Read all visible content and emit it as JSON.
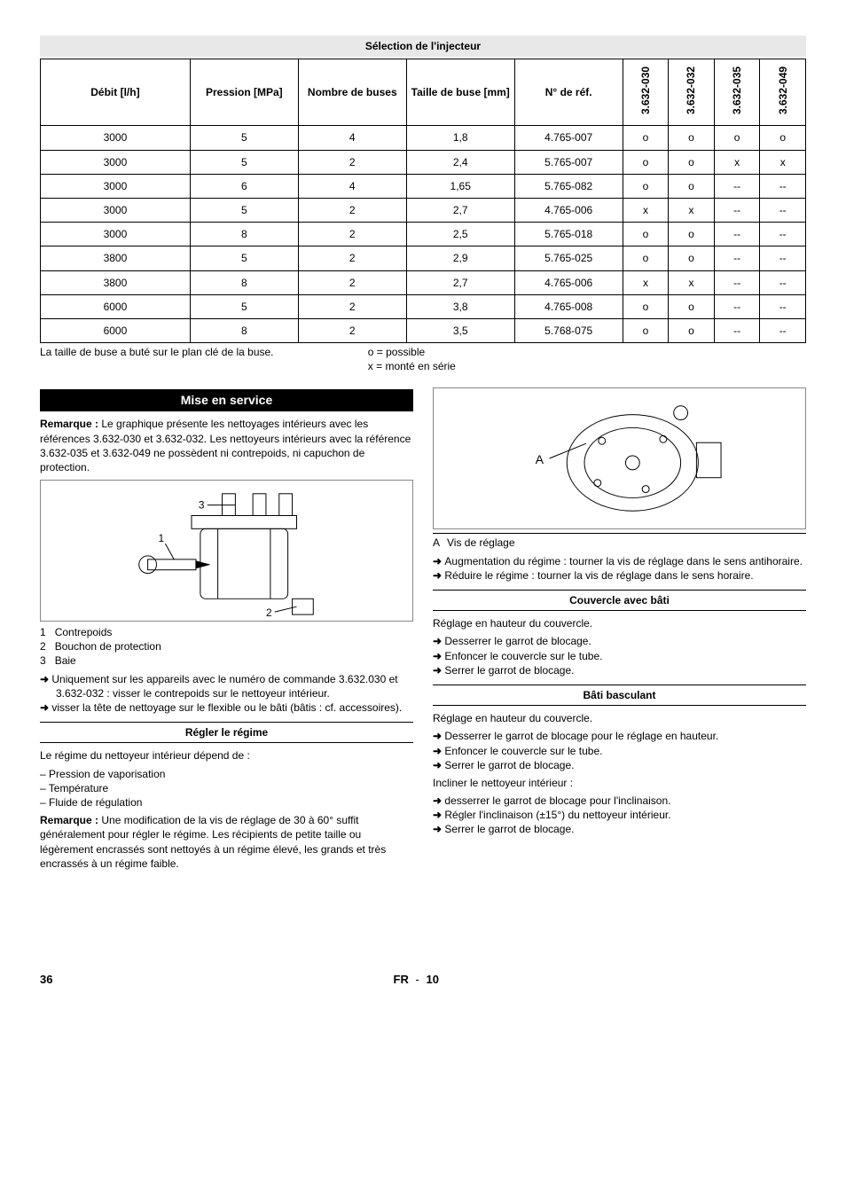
{
  "table": {
    "title": "Sélection de l'injecteur",
    "headers": [
      "Débit [l/h]",
      "Pression [MPa]",
      "Nombre de buses",
      "Taille de buse [mm]",
      "N° de réf."
    ],
    "vheaders": [
      "3.632-030",
      "3.632-032",
      "3.632-035",
      "3.632-049"
    ],
    "col_widths": [
      "18%",
      "13%",
      "13%",
      "13%",
      "13%",
      "5.5%",
      "5.5%",
      "5.5%",
      "5.5%"
    ],
    "rows": [
      [
        "3000",
        "5",
        "4",
        "1,8",
        "4.765-007",
        "o",
        "o",
        "o",
        "o"
      ],
      [
        "3000",
        "5",
        "2",
        "2,4",
        "5.765-007",
        "o",
        "o",
        "x",
        "x"
      ],
      [
        "3000",
        "6",
        "4",
        "1,65",
        "5.765-082",
        "o",
        "o",
        "--",
        "--"
      ],
      [
        "3000",
        "5",
        "2",
        "2,7",
        "4.765-006",
        "x",
        "x",
        "--",
        "--"
      ],
      [
        "3000",
        "8",
        "2",
        "2,5",
        "5.765-018",
        "o",
        "o",
        "--",
        "--"
      ],
      [
        "3800",
        "5",
        "2",
        "2,9",
        "5.765-025",
        "o",
        "o",
        "--",
        "--"
      ],
      [
        "3800",
        "8",
        "2",
        "2,7",
        "4.765-006",
        "x",
        "x",
        "--",
        "--"
      ],
      [
        "6000",
        "5",
        "2",
        "3,8",
        "4.765-008",
        "o",
        "o",
        "--",
        "--"
      ],
      [
        "6000",
        "8",
        "2",
        "3,5",
        "5.768-075",
        "o",
        "o",
        "--",
        "--"
      ]
    ],
    "note_left": "La taille de buse a buté sur le plan clé de la buse.",
    "note_right_1": "o = possible",
    "note_right_2": "x = monté en série"
  },
  "left_col": {
    "section_title": "Mise en service",
    "remark": "Remarque : Le graphique présente les nettoyages intérieurs avec les références 3.632-030 et 3.632-032. Les nettoyeurs intérieurs avec la référence 3.632-035 et 3.632-049 ne possèdent ni contrepoids, ni capuchon de protection.",
    "legend": [
      {
        "n": "1",
        "t": "Contrepoids"
      },
      {
        "n": "2",
        "t": "Bouchon de protection"
      },
      {
        "n": "3",
        "t": "Baie"
      }
    ],
    "arrows1": [
      "Uniquement sur les appareils avec le numéro de commande 3.632.030 et 3.632-032 : visser le contrepoids sur le nettoyeur intérieur.",
      "visser la tête de nettoyage sur le flexible ou le bâti (bâtis : cf. accessoires)."
    ],
    "sub1_title": "Régler le régime",
    "sub1_intro": "Le régime du nettoyeur intérieur dépend de :",
    "sub1_dash": [
      "Pression de vaporisation",
      "Température",
      "Fluide de régulation"
    ],
    "sub1_remark": "Remarque : Une modification de la vis de réglage de 30 à 60° suffit généralement pour régler le régime. Les récipients de petite taille ou légèrement encrassés sont nettoyés à un régime élevé, les grands et très encrassés à un régime faible."
  },
  "right_col": {
    "diagram_caption_label": "A",
    "diagram_caption_text": "Vis de réglage",
    "arrows1": [
      "Augmentation du régime : tourner la vis de réglage dans le sens antihoraire.",
      "Réduire le régime : tourner la vis de réglage dans le sens horaire."
    ],
    "sub1_title": "Couvercle avec bâti",
    "sub1_intro": "Réglage en hauteur du couvercle.",
    "sub1_arrows": [
      "Desserrer le garrot de blocage.",
      "Enfoncer le couvercle sur le tube.",
      "Serrer le garrot de blocage."
    ],
    "sub2_title": "Bâti basculant",
    "sub2_intro1": "Réglage en hauteur du couvercle.",
    "sub2_arrows1": [
      "Desserrer le garrot de blocage pour le réglage en hauteur.",
      "Enfoncer le couvercle sur le tube.",
      "Serrer le garrot de blocage."
    ],
    "sub2_intro2": "Incliner le nettoyeur intérieur :",
    "sub2_arrows2": [
      "desserrer le garrot de blocage pour l'inclinaison.",
      "Régler l'inclinaison (±15°) du nettoyeur intérieur.",
      "Serrer le garrot de blocage."
    ]
  },
  "footer": {
    "page": "36",
    "lang": "FR",
    "sep": "-",
    "sub": "10"
  }
}
